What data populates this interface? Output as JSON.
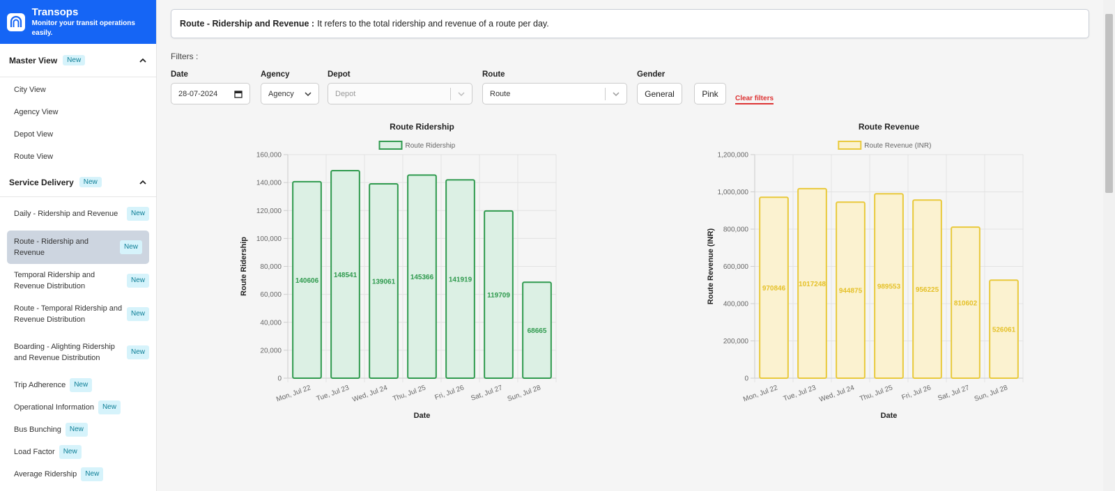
{
  "brand": {
    "title": "Transops",
    "subtitle": "Monitor your transit operations easily."
  },
  "sidebar": {
    "sections": [
      {
        "title": "Master View",
        "badge": "New",
        "items": [
          {
            "label": "City View"
          },
          {
            "label": "Agency View"
          },
          {
            "label": "Depot View"
          },
          {
            "label": "Route View"
          }
        ]
      },
      {
        "title": "Service Delivery",
        "badge": "New",
        "items": [
          {
            "label": "Daily - Ridership and Revenue",
            "badge": "New"
          },
          {
            "label": "Route - Ridership and Revenue",
            "badge": "New",
            "active": true
          },
          {
            "label": "Temporal Ridership and Revenue Distribution",
            "badge": "New"
          },
          {
            "label": "Route - Temporal Ridership and Revenue Distribution",
            "badge": "New"
          },
          {
            "label": "Boarding - Alighting Ridership and Revenue Distribution",
            "badge": "New"
          },
          {
            "label": "Trip Adherence",
            "badge": "New"
          },
          {
            "label": "Operational Information",
            "badge": "New"
          },
          {
            "label": "Bus Bunching",
            "badge": "New"
          },
          {
            "label": "Load Factor",
            "badge": "New"
          },
          {
            "label": "Average Ridership",
            "badge": "New"
          }
        ]
      }
    ]
  },
  "info": {
    "title": "Route - Ridership and Revenue :",
    "text": "It refers to the total ridership and revenue of a route per day."
  },
  "filters": {
    "heading": "Filters :",
    "date": {
      "label": "Date",
      "value": "28-07-2024"
    },
    "agency": {
      "label": "Agency",
      "value": "Agency"
    },
    "depot": {
      "label": "Depot",
      "placeholder": "Depot"
    },
    "route": {
      "label": "Route",
      "value": "Route"
    },
    "gender": {
      "label": "Gender",
      "options": [
        "General",
        "Pink"
      ]
    },
    "clear": "Clear filters"
  },
  "colors": {
    "brand": "#1565f5",
    "ridership_fill": "#dcf0e4",
    "ridership_stroke": "#2f9a4e",
    "ridership_text": "#2f9a4e",
    "revenue_fill": "#fbf2d0",
    "revenue_stroke": "#e9c93b",
    "revenue_text": "#e5c12a"
  },
  "chart_data": [
    {
      "type": "bar",
      "title": "Route Ridership",
      "legend": "Route Ridership",
      "xlabel": "Date",
      "ylabel": "Route Ridership",
      "categories": [
        "Mon, Jul 22",
        "Tue, Jul 23",
        "Wed, Jul 24",
        "Thu, Jul 25",
        "Fri, Jul 26",
        "Sat, Jul 27",
        "Sun, Jul 28"
      ],
      "values": [
        140606,
        148541,
        139061,
        145366,
        141919,
        119709,
        68665
      ],
      "ylim": [
        0,
        160000
      ],
      "yticks": [
        0,
        20000,
        40000,
        60000,
        80000,
        100000,
        120000,
        140000,
        160000
      ],
      "ytick_labels": [
        "0",
        "20,000",
        "40,000",
        "60,000",
        "80,000",
        "100,000",
        "120,000",
        "140,000",
        "160,000"
      ],
      "grid": true,
      "legend_position": "top"
    },
    {
      "type": "bar",
      "title": "Route Revenue",
      "legend": "Route Revenue (INR)",
      "xlabel": "Date",
      "ylabel": "Route Revenue (INR)",
      "categories": [
        "Mon, Jul 22",
        "Tue, Jul 23",
        "Wed, Jul 24",
        "Thu, Jul 25",
        "Fri, Jul 26",
        "Sat, Jul 27",
        "Sun, Jul 28"
      ],
      "values": [
        970846,
        1017248,
        944875,
        989553,
        956225,
        810602,
        526061
      ],
      "ylim": [
        0,
        1200000
      ],
      "yticks": [
        0,
        200000,
        400000,
        600000,
        800000,
        1000000,
        1200000
      ],
      "ytick_labels": [
        "0",
        "200,000",
        "400,000",
        "600,000",
        "800,000",
        "1,000,000",
        "1,200,000"
      ],
      "grid": true,
      "legend_position": "top"
    }
  ]
}
